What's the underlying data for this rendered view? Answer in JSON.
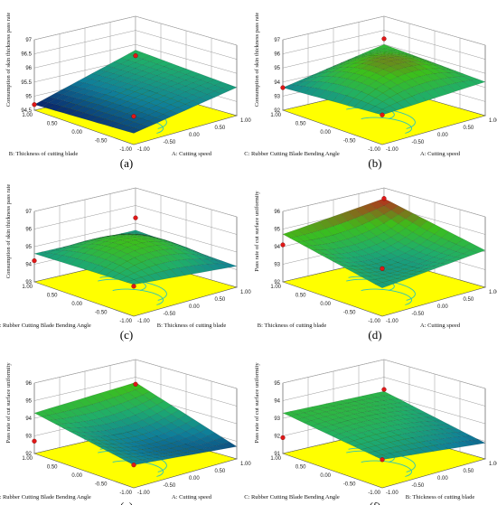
{
  "chart_data": [
    {
      "type": "surface",
      "panel_label": "(a)",
      "zlabel": "Consumption of skin thickness pass rate",
      "xlabel": "A: Cutting speed",
      "ylabel": "B: Thickness of cutting blade",
      "z_ticks": [
        "94.5",
        "95",
        "95.5",
        "96",
        "96.5",
        "97"
      ],
      "zlim": [
        94.5,
        97
      ],
      "x_ticks": [
        "-1.00",
        "-0.50",
        "0.00",
        "0.50",
        "1.00"
      ],
      "y_ticks": [
        "-1.00",
        "-0.50",
        "0.00",
        "0.50",
        "1.00"
      ],
      "corner_values": {
        "front": 94.9,
        "right": 95.5,
        "back": 95.8,
        "left": 94.7
      },
      "center_value": 95.3,
      "marker_values": [
        95.6,
        95.5,
        94.7
      ],
      "palette": [
        "#0a2a6e",
        "#0f7f9a",
        "#1fae6a",
        "#3cbf1a",
        "#b4331c"
      ]
    },
    {
      "type": "surface",
      "panel_label": "(b)",
      "zlabel": "Consumption of skin thickness pass rate",
      "xlabel": "A: Cutting speed",
      "ylabel": "C: Rubber Cutting Blade Bending Angle",
      "z_ticks": [
        "92",
        "93",
        "94",
        "95",
        "96",
        "97"
      ],
      "zlim": [
        92,
        97
      ],
      "x_ticks": [
        "-1.00",
        "-0.50",
        "0.00",
        "0.50",
        "1.00"
      ],
      "y_ticks": [
        "-1.00",
        "-0.50",
        "0.00",
        "0.50",
        "1.00"
      ],
      "corner_values": {
        "front": 94.1,
        "right": 94.4,
        "back": 95.0,
        "left": 93.6
      },
      "center_value": 95.6,
      "marker_values": [
        95.4,
        94.1,
        93.6
      ],
      "palette": [
        "#0a2a6e",
        "#0f7f9a",
        "#1fae6a",
        "#3cbf1a",
        "#b4331c"
      ]
    },
    {
      "type": "surface",
      "panel_label": "(c)",
      "zlabel": "Consumption of skin thickness pass rate",
      "xlabel": "B: Thickness of cutting blade",
      "ylabel": "C: Rubber Cutting Blade Bending Angle",
      "z_ticks": [
        "93",
        "94",
        "95",
        "96",
        "97"
      ],
      "zlim": [
        93,
        97
      ],
      "x_ticks": [
        "-1.00",
        "-0.50",
        "0.00",
        "0.50",
        "1.00"
      ],
      "y_ticks": [
        "-1.00",
        "-0.50",
        "0.00",
        "0.50",
        "1.00"
      ],
      "corner_values": {
        "front": 94.8,
        "right": 94.2,
        "back": 94.6,
        "left": 94.6
      },
      "center_value": 95.6,
      "marker_values": [
        95.3,
        94.7,
        94.2
      ],
      "palette": [
        "#0a2a6e",
        "#0f7f9a",
        "#1fae6a",
        "#3cbf1a",
        "#b4331c"
      ]
    },
    {
      "type": "surface",
      "panel_label": "(d)",
      "zlabel": "Pass rate of cut surface uniformity",
      "xlabel": "A: Cutting speed",
      "ylabel": "B: Thickness of cutting blade",
      "z_ticks": [
        "92",
        "93",
        "94",
        "95",
        "96"
      ],
      "zlim": [
        92,
        96
      ],
      "x_ticks": [
        "-1.00",
        "-0.50",
        "0.00",
        "0.50",
        "1.00"
      ],
      "y_ticks": [
        "-1.00",
        "-0.50",
        "0.00",
        "0.50",
        "1.00"
      ],
      "corner_values": {
        "front": 93.6,
        "right": 94.1,
        "back": 95.4,
        "left": 94.7
      },
      "center_value": 93.7,
      "marker_values": [
        95.4,
        94.7,
        94.1
      ],
      "palette": [
        "#0a2a6e",
        "#0f7f9a",
        "#1fae6a",
        "#3cbf1a",
        "#b4331c"
      ]
    },
    {
      "type": "surface",
      "panel_label": "(e)",
      "zlabel": "Pass rate of cut surface uniformity",
      "xlabel": "A: Cutting speed",
      "ylabel": "C: Rubber Cutting Blade Bending Angle",
      "z_ticks": [
        "92",
        "93",
        "94",
        "95",
        "96"
      ],
      "zlim": [
        92,
        96
      ],
      "x_ticks": [
        "-1.00",
        "-0.50",
        "0.00",
        "0.50",
        "1.00"
      ],
      "y_ticks": [
        "-1.00",
        "-0.50",
        "0.00",
        "0.50",
        "1.00"
      ],
      "corner_values": {
        "front": 93.3,
        "right": 92.7,
        "back": 94.7,
        "left": 94.3
      },
      "center_value": 93.2,
      "marker_values": [
        94.6,
        93.3,
        92.7
      ],
      "palette": [
        "#0a2a6e",
        "#0f7f9a",
        "#1fae6a",
        "#3cbf1a",
        "#b4331c"
      ]
    },
    {
      "type": "surface",
      "panel_label": "(f)",
      "zlabel": "Pass rate of cut surface uniformity",
      "xlabel": "B: Thickness of cutting blade",
      "ylabel": "C: Rubber Cutting Blade Bending Angle",
      "z_ticks": [
        "91",
        "92",
        "93",
        "94",
        "95"
      ],
      "zlim": [
        91,
        95
      ],
      "x_ticks": [
        "-1.00",
        "-0.50",
        "0.00",
        "0.50",
        "1.00"
      ],
      "y_ticks": [
        "-1.00",
        "-0.50",
        "0.00",
        "0.50",
        "1.00"
      ],
      "corner_values": {
        "front": 92.6,
        "right": 91.9,
        "back": 93.2,
        "left": 93.3
      },
      "center_value": 93.0,
      "marker_values": [
        93.3,
        92.6,
        91.9
      ],
      "palette": [
        "#0a2a6e",
        "#0f7f9a",
        "#1fae6a",
        "#3cbf1a",
        "#b4331c"
      ]
    }
  ],
  "colors": {
    "floor": "#ffff00",
    "contour": "#2ec4b6",
    "marker": "#e01818",
    "grid": "#9a9a9a"
  }
}
